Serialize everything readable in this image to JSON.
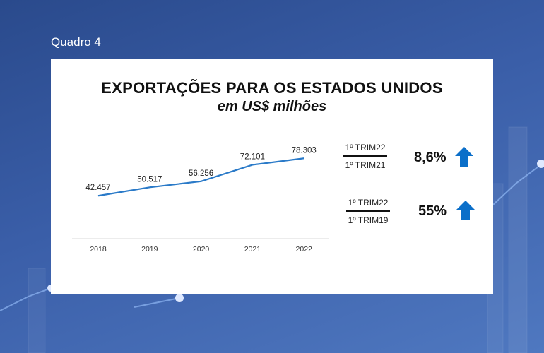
{
  "caption": "Quadro 4",
  "colors": {
    "line": "#2a7ac8",
    "arrow": "#0b6fc9"
  },
  "chart_data": {
    "type": "line",
    "title": "EXPORTAÇÕES PARA OS ESTADOS UNIDOS",
    "subtitle": "em US$ milhões",
    "xlabel": "",
    "ylabel": "",
    "categories": [
      "2018",
      "2019",
      "2020",
      "2021",
      "2022"
    ],
    "values": [
      42457,
      50517,
      56256,
      72101,
      78303
    ],
    "labels": [
      "42.457",
      "50.517",
      "56.256",
      "72.101",
      "78.303"
    ],
    "ylim": [
      0,
      90000
    ],
    "grid": false,
    "legend": "none"
  },
  "comparisons": [
    {
      "numerator": "1º TRIM22",
      "denominator": "1º TRIM21",
      "value": "8,6%",
      "icon": "arrow-up-icon"
    },
    {
      "numerator": "1º TRIM22",
      "denominator": "1º TRIM19",
      "value": "55%",
      "icon": "arrow-up-icon"
    }
  ]
}
